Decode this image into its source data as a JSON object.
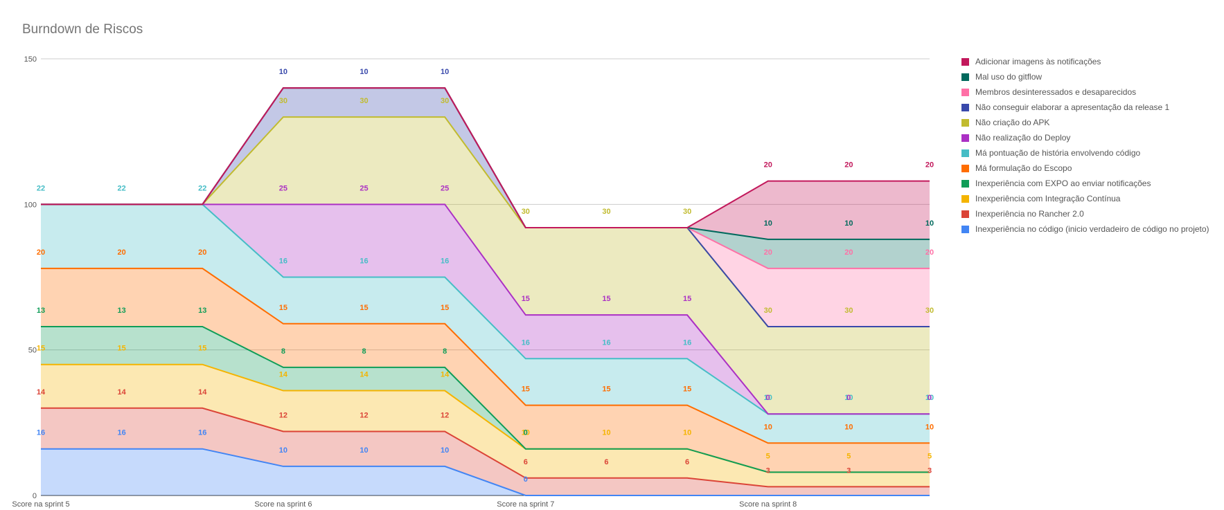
{
  "chart_data": {
    "type": "area",
    "stacked": true,
    "title": "Burndown de Riscos",
    "xlabel": "",
    "ylabel": "",
    "ylim": [
      0,
      150
    ],
    "yticks": [
      0,
      50,
      100,
      150
    ],
    "grid": true,
    "legend_position": "right",
    "categories": [
      "Score na sprint 5",
      "",
      "",
      "Score na sprint 6",
      "",
      "",
      "Score na sprint 7",
      "",
      "",
      "Score na sprint 8",
      "",
      ""
    ],
    "series": [
      {
        "name": "Inexperiência no código (inicio verdadeiro de código no projeto)",
        "color": "#4285f4",
        "values": [
          16,
          16,
          16,
          10,
          10,
          10,
          0,
          0,
          0,
          0,
          0,
          0
        ],
        "labels": [
          "16",
          "16",
          "16",
          "10",
          "10",
          "10",
          "0",
          "",
          "",
          "",
          "",
          ""
        ]
      },
      {
        "name": "Inexperiência no Rancher 2.0",
        "color": "#db4437",
        "values": [
          14,
          14,
          14,
          12,
          12,
          12,
          6,
          6,
          6,
          3,
          3,
          3
        ],
        "labels": [
          "14",
          "14",
          "14",
          "12",
          "12",
          "12",
          "6",
          "6",
          "6",
          "3",
          "3",
          "3"
        ]
      },
      {
        "name": "Inexperiência com Integração Contínua",
        "color": "#f4b400",
        "values": [
          15,
          15,
          15,
          14,
          14,
          14,
          10,
          10,
          10,
          5,
          5,
          5
        ],
        "labels": [
          "15",
          "15",
          "15",
          "14",
          "14",
          "14",
          "10",
          "10",
          "10",
          "5",
          "5",
          "5"
        ]
      },
      {
        "name": "Inexperiência com EXPO ao enviar notificações",
        "color": "#0f9d58",
        "values": [
          13,
          13,
          13,
          8,
          8,
          8,
          0,
          0,
          0,
          0,
          0,
          0
        ],
        "labels": [
          "13",
          "13",
          "13",
          "8",
          "8",
          "8",
          "0",
          "",
          "",
          "",
          "",
          ""
        ]
      },
      {
        "name": "Má formulação do Escopo",
        "color": "#ff6d00",
        "values": [
          20,
          20,
          20,
          15,
          15,
          15,
          15,
          15,
          15,
          10,
          10,
          10
        ],
        "labels": [
          "20",
          "20",
          "20",
          "15",
          "15",
          "15",
          "15",
          "15",
          "15",
          "10",
          "10",
          "10"
        ]
      },
      {
        "name": "Má pontuação de história envolvendo código",
        "color": "#46bdc6",
        "values": [
          22,
          22,
          22,
          16,
          16,
          16,
          16,
          16,
          16,
          10,
          10,
          10
        ],
        "labels": [
          "22",
          "22",
          "22",
          "16",
          "16",
          "16",
          "16",
          "16",
          "16",
          "10",
          "10",
          "10"
        ]
      },
      {
        "name": "Não realização do Deploy",
        "color": "#ab30c4",
        "values": [
          0,
          0,
          0,
          25,
          25,
          25,
          15,
          15,
          15,
          0,
          0,
          0
        ],
        "labels": [
          "",
          "",
          "",
          "25",
          "25",
          "25",
          "15",
          "15",
          "15",
          "0",
          "0",
          "0"
        ]
      },
      {
        "name": "Não criação do APK",
        "color": "#c1bb2f",
        "values": [
          0,
          0,
          0,
          30,
          30,
          30,
          30,
          30,
          30,
          30,
          30,
          30
        ],
        "labels": [
          "",
          "",
          "",
          "30",
          "30",
          "30",
          "30",
          "30",
          "30",
          "30",
          "30",
          "30"
        ]
      },
      {
        "name": "Não conseguir elaborar a apresentação da release 1",
        "color": "#3949ab",
        "values": [
          0,
          0,
          0,
          10,
          10,
          10,
          0,
          0,
          0,
          0,
          0,
          0
        ],
        "labels": [
          "",
          "",
          "",
          "10",
          "10",
          "10",
          "",
          "",
          "",
          "",
          "",
          ""
        ]
      },
      {
        "name": "Membros desinteressados e desaparecidos",
        "color": "#ff70a6",
        "values": [
          0,
          0,
          0,
          0,
          0,
          0,
          0,
          0,
          0,
          20,
          20,
          20
        ],
        "labels": [
          "",
          "",
          "",
          "",
          "",
          "",
          "",
          "",
          "",
          "20",
          "20",
          "20"
        ]
      },
      {
        "name": "Mal uso do gitflow",
        "color": "#00695c",
        "values": [
          0,
          0,
          0,
          0,
          0,
          0,
          0,
          0,
          0,
          10,
          10,
          10
        ],
        "labels": [
          "",
          "",
          "",
          "",
          "",
          "",
          "",
          "",
          "",
          "10",
          "10",
          "10"
        ]
      },
      {
        "name": "Adicionar imagens às notificações",
        "color": "#c2185b",
        "values": [
          0,
          0,
          0,
          0,
          0,
          0,
          0,
          0,
          0,
          20,
          20,
          20
        ],
        "labels": [
          "",
          "",
          "",
          "",
          "",
          "",
          "",
          "",
          "",
          "20",
          "20",
          "20"
        ]
      }
    ]
  }
}
